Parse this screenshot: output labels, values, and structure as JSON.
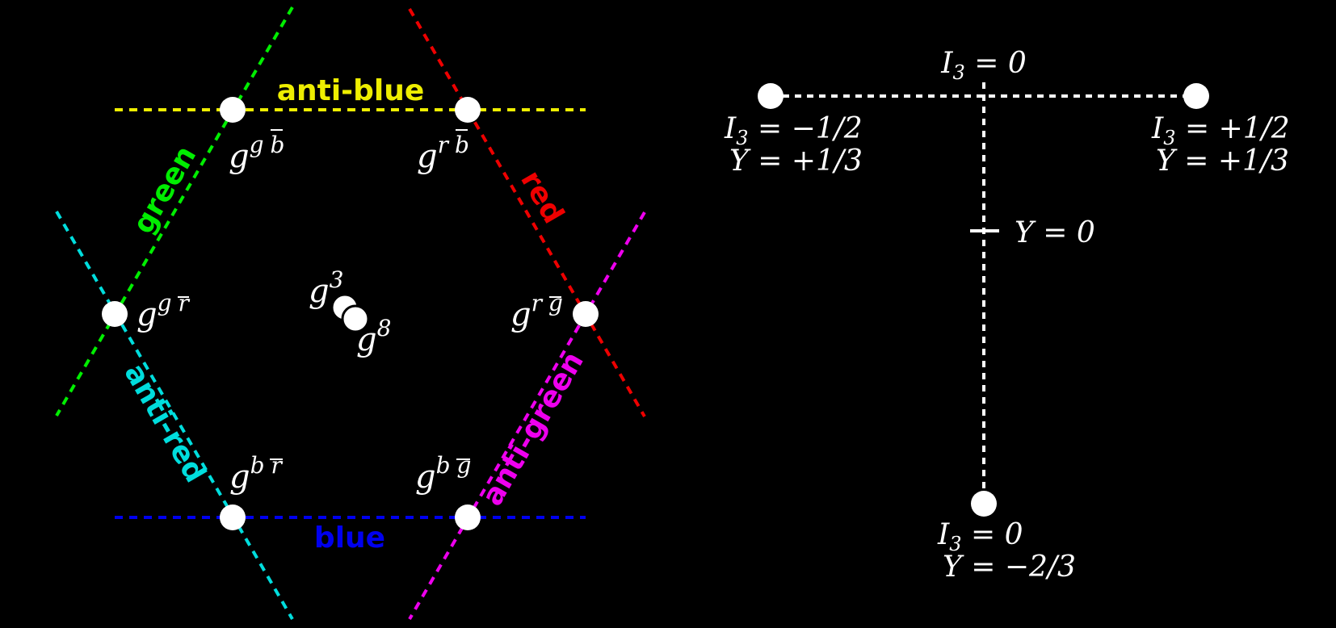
{
  "colors": {
    "background": "#000000",
    "node": "#ffffff",
    "green": "#00ee00",
    "red": "#ee0000",
    "cyan": "#00dddd",
    "magenta": "#ee00ee",
    "yellow": "#eeee00",
    "blue": "#0000ee"
  },
  "octet": {
    "color_lines": [
      {
        "key": "anti-blue",
        "label": "anti-blue",
        "color": "#eeee00"
      },
      {
        "key": "green",
        "label": "green",
        "color": "#00ee00"
      },
      {
        "key": "red",
        "label": "red",
        "color": "#ee0000"
      },
      {
        "key": "anti-red",
        "label": "anti-red",
        "color": "#00dddd"
      },
      {
        "key": "anti-green",
        "label": "anti-green",
        "color": "#ee00ee"
      },
      {
        "key": "blue",
        "label": "blue",
        "color": "#0000ee"
      }
    ],
    "gluons": [
      {
        "key": "g-g-bbar",
        "base": "g",
        "sup1": "g",
        "sup2": "b"
      },
      {
        "key": "g-r-bbar",
        "base": "g",
        "sup1": "r",
        "sup2": "b"
      },
      {
        "key": "g-g-rbar",
        "base": "g",
        "sup1": "g",
        "sup2": "r"
      },
      {
        "key": "g-r-gbar",
        "base": "g",
        "sup1": "r",
        "sup2": "g"
      },
      {
        "key": "g-b-rbar",
        "base": "g",
        "sup1": "b",
        "sup2": "r"
      },
      {
        "key": "g-b-gbar",
        "base": "g",
        "sup1": "b",
        "sup2": "g"
      }
    ],
    "neutral": [
      {
        "key": "g3",
        "base": "g",
        "sup": "3"
      },
      {
        "key": "g8",
        "base": "g",
        "sup": "8"
      }
    ]
  },
  "triplet": {
    "axis_labels": {
      "i3_zero": {
        "sym": "I",
        "sub": "3",
        "rest": " = 0"
      },
      "y_zero": "Y = 0"
    },
    "points": [
      {
        "key": "left",
        "i3": {
          "sym": "I",
          "sub": "3",
          "rest": " = −1/2"
        },
        "y": "Y = +1/3"
      },
      {
        "key": "right",
        "i3": {
          "sym": "I",
          "sub": "3",
          "rest": " = +1/2"
        },
        "y": "Y = +1/3"
      },
      {
        "key": "bottom",
        "i3": {
          "sym": "I",
          "sub": "3",
          "rest": " = 0"
        },
        "y": "Y = −2/3"
      }
    ]
  }
}
